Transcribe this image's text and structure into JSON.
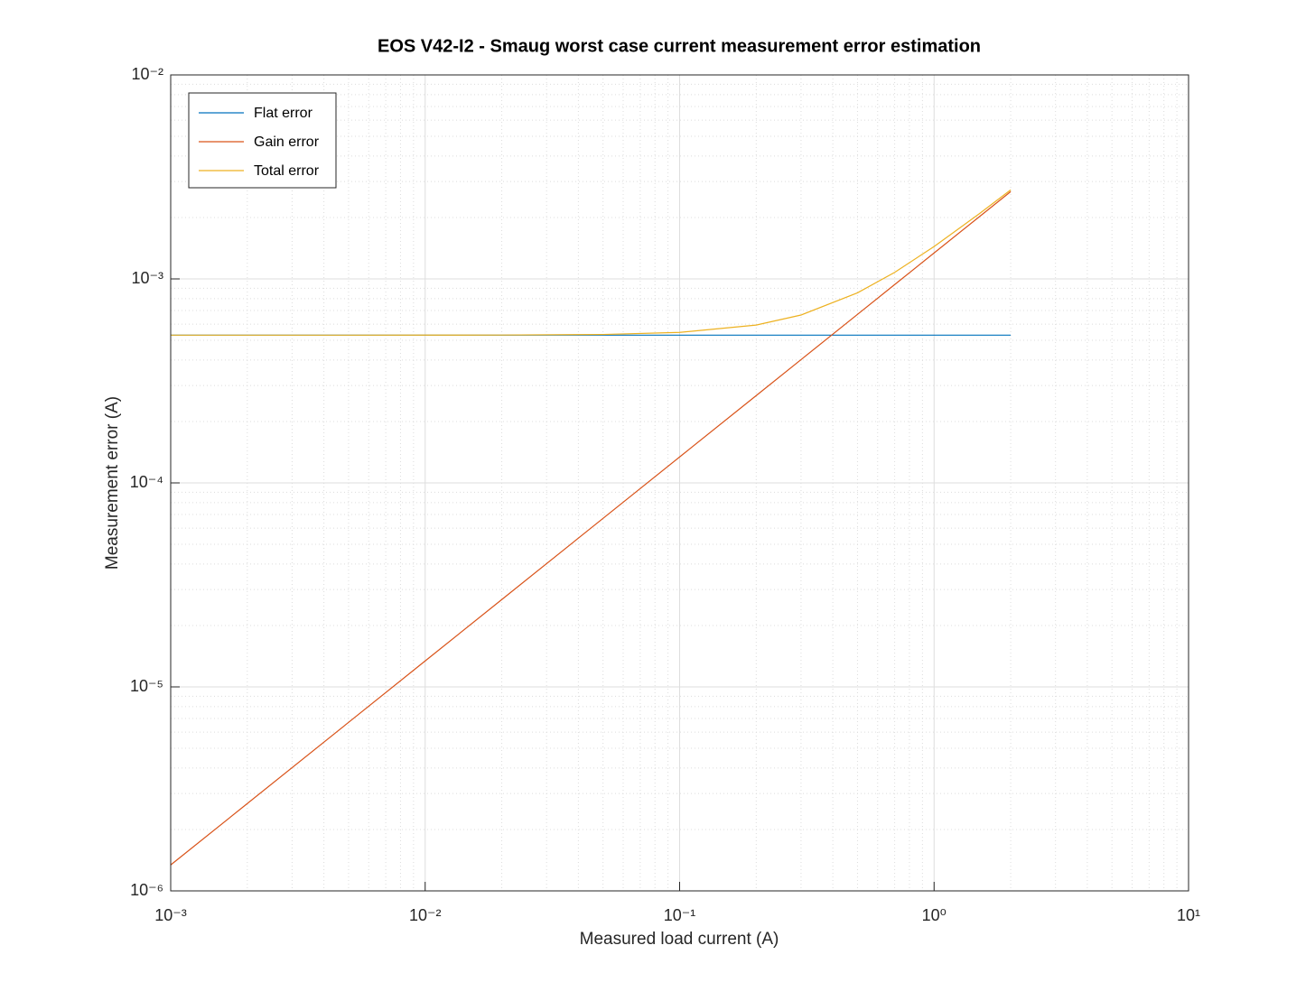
{
  "chart_data": {
    "type": "line",
    "title": "EOS V42-I2 - Smaug worst case current measurement error estimation",
    "x_label": "Measured load current (A)",
    "y_label": "Measurement error (A)",
    "x_scale": "log",
    "y_scale": "log",
    "grid": true,
    "minor_grid": true,
    "legend_position": "upper left",
    "xlim": [
      0.001,
      10
    ],
    "ylim": [
      1e-06,
      0.01
    ],
    "xticks": [
      {
        "value": 0.001,
        "label": "10⁻³"
      },
      {
        "value": 0.01,
        "label": "10⁻²"
      },
      {
        "value": 0.1,
        "label": "10⁻¹"
      },
      {
        "value": 1,
        "label": "10⁰"
      },
      {
        "value": 10,
        "label": "10¹"
      }
    ],
    "yticks": [
      {
        "value": 1e-06,
        "label": "10⁻⁶"
      },
      {
        "value": 1e-05,
        "label": "10⁻⁵"
      },
      {
        "value": 0.0001,
        "label": "10⁻⁴"
      },
      {
        "value": 0.001,
        "label": "10⁻³"
      },
      {
        "value": 0.01,
        "label": "10⁻²"
      }
    ],
    "x": [
      0.001,
      0.002,
      0.005,
      0.01,
      0.02,
      0.05,
      0.1,
      0.2,
      0.3,
      0.5,
      0.7,
      1,
      1.5,
      2
    ],
    "series": [
      {
        "name": "Flat error",
        "color": "#0072bd",
        "values": [
          0.00053,
          0.00053,
          0.00053,
          0.00053,
          0.00053,
          0.00053,
          0.00053,
          0.00053,
          0.00053,
          0.00053,
          0.00053,
          0.00053,
          0.00053,
          0.00053
        ]
      },
      {
        "name": "Gain error",
        "color": "#d95319",
        "values": [
          1.34e-06,
          2.68e-06,
          6.7e-06,
          1.34e-05,
          2.68e-05,
          6.7e-05,
          0.000134,
          0.000268,
          0.000402,
          0.00067,
          0.000938,
          0.00134,
          0.00201,
          0.00268
        ]
      },
      {
        "name": "Total error",
        "color": "#edb120",
        "values": [
          0.00053,
          0.00053,
          0.00053,
          0.0005302,
          0.0005307,
          0.0005342,
          0.0005467,
          0.0005939,
          0.0006652,
          0.0008543,
          0.001077,
          0.001441,
          0.002079,
          0.002732
        ]
      }
    ]
  }
}
